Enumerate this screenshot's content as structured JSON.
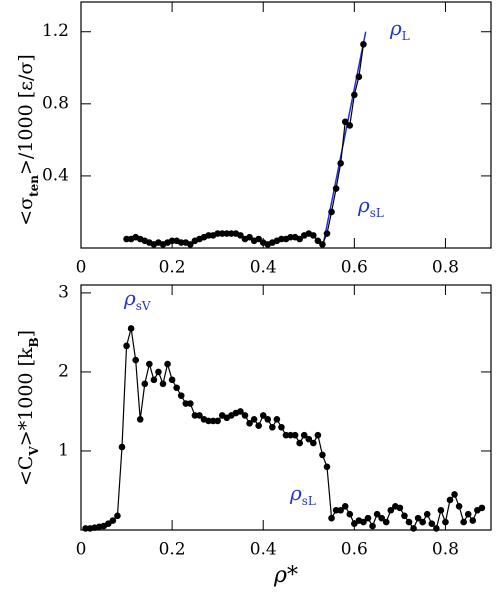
{
  "chart_data": [
    {
      "type": "line",
      "ylabel": [
        "<σ",
        "ten",
        ">/1000  [ε/σ]"
      ],
      "x": [
        0.1,
        0.11,
        0.12,
        0.13,
        0.14,
        0.15,
        0.16,
        0.17,
        0.18,
        0.19,
        0.2,
        0.21,
        0.22,
        0.23,
        0.24,
        0.25,
        0.26,
        0.27,
        0.28,
        0.29,
        0.3,
        0.31,
        0.32,
        0.33,
        0.34,
        0.35,
        0.36,
        0.37,
        0.38,
        0.39,
        0.4,
        0.41,
        0.42,
        0.43,
        0.44,
        0.45,
        0.46,
        0.47,
        0.48,
        0.49,
        0.5,
        0.51,
        0.52,
        0.53,
        0.54,
        0.55,
        0.56,
        0.57,
        0.58,
        0.59,
        0.6,
        0.61,
        0.62
      ],
      "values": [
        0.05,
        0.05,
        0.06,
        0.05,
        0.04,
        0.03,
        0.02,
        0.03,
        0.02,
        0.03,
        0.04,
        0.04,
        0.03,
        0.03,
        0.02,
        0.04,
        0.05,
        0.06,
        0.07,
        0.07,
        0.08,
        0.08,
        0.08,
        0.08,
        0.08,
        0.07,
        0.05,
        0.06,
        0.04,
        0.05,
        0.03,
        0.02,
        0.03,
        0.04,
        0.05,
        0.05,
        0.06,
        0.06,
        0.05,
        0.07,
        0.08,
        0.07,
        0.04,
        0.02,
        0.08,
        0.2,
        0.33,
        0.47,
        0.7,
        0.68,
        0.85,
        0.95,
        1.13
      ],
      "color": "#000000",
      "fit": {
        "x": [
          0.53,
          0.625
        ],
        "values": [
          0,
          1.2
        ],
        "color": "#2233cc"
      },
      "annotations": [
        {
          "symbol": "ρ",
          "sub": "L"
        },
        {
          "symbol": "ρ",
          "sub": "sL"
        }
      ],
      "annotation_color": "#2233cc",
      "xlim": [
        0,
        0.9
      ],
      "xticks": [
        0,
        0.2,
        0.4,
        0.6,
        0.8
      ],
      "ylim": [
        0,
        1.365
      ],
      "yticks": [
        0.4,
        0.8,
        1.2
      ]
    },
    {
      "type": "line",
      "xlabel": "ρ*",
      "ylabel": [
        "<C",
        "V",
        ">*1000  [k",
        "B",
        "]"
      ],
      "x": [
        0.01,
        0.02,
        0.03,
        0.04,
        0.05,
        0.06,
        0.07,
        0.08,
        0.09,
        0.1,
        0.11,
        0.12,
        0.13,
        0.14,
        0.15,
        0.16,
        0.17,
        0.18,
        0.19,
        0.2,
        0.21,
        0.22,
        0.23,
        0.24,
        0.25,
        0.26,
        0.27,
        0.28,
        0.29,
        0.3,
        0.31,
        0.32,
        0.33,
        0.34,
        0.35,
        0.36,
        0.37,
        0.38,
        0.39,
        0.4,
        0.41,
        0.42,
        0.43,
        0.44,
        0.45,
        0.46,
        0.47,
        0.48,
        0.49,
        0.5,
        0.51,
        0.52,
        0.53,
        0.54,
        0.55,
        0.56,
        0.57,
        0.58,
        0.59,
        0.6,
        0.61,
        0.62,
        0.63,
        0.64,
        0.65,
        0.66,
        0.67,
        0.68,
        0.69,
        0.7,
        0.71,
        0.72,
        0.73,
        0.74,
        0.75,
        0.76,
        0.77,
        0.78,
        0.79,
        0.8,
        0.81,
        0.82,
        0.83,
        0.84,
        0.85,
        0.86,
        0.87,
        0.88
      ],
      "values": [
        0.02,
        0.02,
        0.03,
        0.04,
        0.05,
        0.08,
        0.12,
        0.18,
        1.05,
        2.33,
        2.55,
        2.15,
        1.4,
        1.85,
        2.1,
        1.9,
        2.0,
        1.85,
        2.1,
        1.9,
        1.8,
        1.7,
        1.6,
        1.6,
        1.45,
        1.45,
        1.4,
        1.38,
        1.38,
        1.38,
        1.45,
        1.42,
        1.45,
        1.48,
        1.5,
        1.45,
        1.35,
        1.4,
        1.32,
        1.45,
        1.4,
        1.3,
        1.4,
        1.3,
        1.2,
        1.2,
        1.2,
        1.1,
        1.2,
        1.15,
        1.1,
        1.2,
        0.95,
        0.8,
        0.15,
        0.25,
        0.25,
        0.3,
        0.2,
        0.08,
        0.12,
        0.1,
        0.15,
        0.05,
        0.2,
        0.15,
        0.1,
        0.25,
        0.3,
        0.28,
        0.18,
        0.1,
        0.02,
        0.15,
        0.1,
        0.2,
        0.08,
        0.02,
        0.25,
        0.1,
        0.38,
        0.45,
        0.3,
        0.1,
        0.2,
        0.12,
        0.25,
        0.28
      ],
      "color": "#000000",
      "annotations": [
        {
          "symbol": "ρ",
          "sub": "sV"
        },
        {
          "symbol": "ρ",
          "sub": "sL"
        }
      ],
      "annotation_color": "#2233cc",
      "xlim": [
        0,
        0.9
      ],
      "xticks": [
        0,
        0.2,
        0.4,
        0.6,
        0.8
      ],
      "ylim": [
        0,
        3.1
      ],
      "yticks": [
        1,
        2,
        3
      ]
    }
  ]
}
